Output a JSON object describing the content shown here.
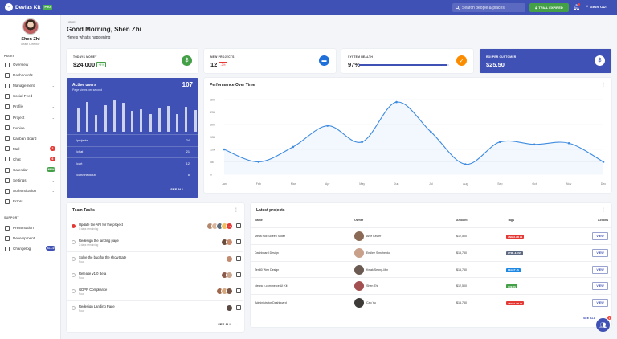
{
  "app": {
    "name": "Devias Kit",
    "badge": "PRO"
  },
  "topbar": {
    "search_placeholder": "Search people & places",
    "trial_label": "TRIAL EXPIRED",
    "signout_label": "SIGN OUT",
    "notification_count": ""
  },
  "profile": {
    "name": "Shen Zhi",
    "role": "Brain Director"
  },
  "sidebar": {
    "pages_title": "PAGES",
    "support_title": "SUPPORT",
    "items": [
      {
        "label": "Overview",
        "icon": "dashboard-icon",
        "chevron": false,
        "badge": ""
      },
      {
        "label": "Dashboards",
        "icon": "chart-icon",
        "chevron": true,
        "badge": ""
      },
      {
        "label": "Management",
        "icon": "list-icon",
        "chevron": true,
        "badge": ""
      },
      {
        "label": "Social Feed",
        "icon": "users-icon",
        "chevron": false,
        "badge": ""
      },
      {
        "label": "Profile",
        "icon": "person-icon",
        "chevron": true,
        "badge": ""
      },
      {
        "label": "Project",
        "icon": "folder-icon",
        "chevron": true,
        "badge": ""
      },
      {
        "label": "Invoice",
        "icon": "receipt-icon",
        "chevron": false,
        "badge": ""
      },
      {
        "label": "Kanban Board",
        "icon": "board-icon",
        "chevron": false,
        "badge": ""
      },
      {
        "label": "Mail",
        "icon": "mail-icon",
        "chevron": false,
        "badge": "2",
        "badge_color": "#e53935"
      },
      {
        "label": "Chat",
        "icon": "chat-icon",
        "chevron": false,
        "badge": "6",
        "badge_color": "#e53935"
      },
      {
        "label": "Calendar",
        "icon": "calendar-icon",
        "chevron": false,
        "badge": "NEW",
        "badge_color": "#43a047"
      },
      {
        "label": "Settings",
        "icon": "gear-icon",
        "chevron": true,
        "badge": ""
      },
      {
        "label": "Authentication",
        "icon": "lock-icon",
        "chevron": true,
        "badge": ""
      },
      {
        "label": "Errors",
        "icon": "error-icon",
        "chevron": true,
        "badge": ""
      }
    ],
    "support_items": [
      {
        "label": "Presentation",
        "icon": "present-icon",
        "chevron": false,
        "badge": ""
      },
      {
        "label": "Development",
        "icon": "code-icon",
        "chevron": true,
        "badge": ""
      },
      {
        "label": "Changelog",
        "icon": "changelog-icon",
        "chevron": false,
        "badge": "v1.1.0",
        "badge_color": "#3f51b5"
      }
    ]
  },
  "header": {
    "breadcrumb": "HOME",
    "greeting": "Good Morning, Shen Zhi",
    "subtitle": "Here's what's happening"
  },
  "stats": [
    {
      "label": "TODAYS MONEY",
      "value": "$24,000",
      "chip": "+4%",
      "chip_color": "#43a047",
      "icon": "money-icon",
      "icon_bg": "#43a047"
    },
    {
      "label": "NEW PROJECTS",
      "value": "12",
      "chip": "-2%",
      "chip_color": "#e53935",
      "icon": "folder-icon",
      "icon_bg": "#1e6fd9"
    },
    {
      "label": "SYSTEM HEALTH",
      "value": "97%",
      "progress": 0.97,
      "icon": "wrench-icon",
      "icon_bg": "#fb8c00"
    },
    {
      "label": "ROI PER CUSTOMER",
      "value": "$25.50",
      "icon": "dollar-icon",
      "icon_bg": "#ffffff"
    }
  ],
  "active_users": {
    "title": "Active users",
    "subtitle": "Page views per second",
    "count": "107",
    "bars": [
      0.72,
      0.92,
      0.52,
      0.82,
      0.98,
      0.9,
      0.65,
      0.7,
      0.55,
      0.75,
      0.8,
      0.55,
      0.78,
      0.68
    ],
    "rows": [
      {
        "path": "/projects",
        "value": "24"
      },
      {
        "path": "/chat",
        "value": "21"
      },
      {
        "path": "/cart",
        "value": "12"
      },
      {
        "path": "/cart/checkout",
        "value": "8"
      }
    ],
    "see_all": "SEE ALL"
  },
  "performance": {
    "title": "Performance Over Time"
  },
  "chart_data": {
    "type": "line",
    "title": "Performance Over Time",
    "categories": [
      "Jan",
      "Feb",
      "Mar",
      "Apr",
      "May",
      "Jun",
      "Jul",
      "Aug",
      "Sep",
      "Oct",
      "Nov",
      "Dec"
    ],
    "yticks": [
      "0",
      "5k",
      "10k",
      "15k",
      "20k",
      "25k",
      "30k"
    ],
    "ylim": [
      0,
      30
    ],
    "series": [
      {
        "values": [
          10,
          5,
          11,
          19.5,
          13,
          29,
          17,
          4,
          13,
          12,
          12.5,
          5
        ]
      }
    ],
    "grid": true
  },
  "team_tasks": {
    "title": "Team Tasks",
    "see_all": "SEE ALL",
    "tasks": [
      {
        "name": "Update the API for the project",
        "sub": "1 days remaining",
        "status": "#e53935",
        "avatars": [
          "#b3876b",
          "#d8b49a",
          "#5a6b7c",
          "#f0c060"
        ],
        "extra": "+3"
      },
      {
        "name": "Redesign the landing page",
        "sub": "2 days remaining",
        "status": "",
        "avatars": [
          "#6b4c3b",
          "#c98b6b"
        ],
        "extra": ""
      },
      {
        "name": "Solve the bug for the showState",
        "sub": "Now",
        "status": "",
        "avatars": [
          "#c28a6e"
        ],
        "extra": ""
      },
      {
        "name": "Release v1.0 Beta",
        "sub": "Now",
        "status": "",
        "avatars": [
          "#8b5a4a",
          "#caa58c"
        ],
        "extra": ""
      },
      {
        "name": "GDPR Compliance",
        "sub": "Now",
        "status": "",
        "avatars": [
          "#a0674b",
          "#d4a87f",
          "#7a5444"
        ],
        "extra": ""
      },
      {
        "name": "Redesign Landing Page",
        "sub": "Now",
        "status": "",
        "avatars": [
          "#5b4a44"
        ],
        "extra": ""
      }
    ]
  },
  "latest_projects": {
    "title": "Latest projects",
    "columns": [
      "Name",
      "Owner",
      "Amount",
      "Tags",
      "Actions"
    ],
    "view_label": "VIEW",
    "see_all": "SEE ALL",
    "rows": [
      {
        "name": "Mella Full Screen Slider",
        "owner": "Anje Keizer",
        "owner_color": "#8a6a55",
        "amount": "$12,500",
        "tag": "ANGULAR JS",
        "tag_color": "#e53935"
      },
      {
        "name": "Dashboard Design",
        "owner": "Emilee Simchenko",
        "owner_color": "#c9a08a",
        "amount": "$15,750",
        "tag": "HTML & CSS",
        "tag_color": "#5f6b84"
      },
      {
        "name": "Ten80 Web Design",
        "owner": "Kwak Seong-Min",
        "owner_color": "#6b5a52",
        "amount": "$15,750",
        "tag": "REACT JS",
        "tag_color": "#1e88e5"
      },
      {
        "name": "Neura e-commerce UI Kit",
        "owner": "Shen Zhi",
        "owner_color": "#a35050",
        "amount": "$12,500",
        "tag": "VUE JS",
        "tag_color": "#43a047"
      },
      {
        "name": "Administrator Dashboard",
        "owner": "Cao Yu",
        "owner_color": "#3d3a38",
        "amount": "$15,750",
        "tag": "ANGULAR JS",
        "tag_color": "#e53935"
      }
    ]
  },
  "fab": {
    "icon": "people-icon",
    "badge": "1"
  }
}
